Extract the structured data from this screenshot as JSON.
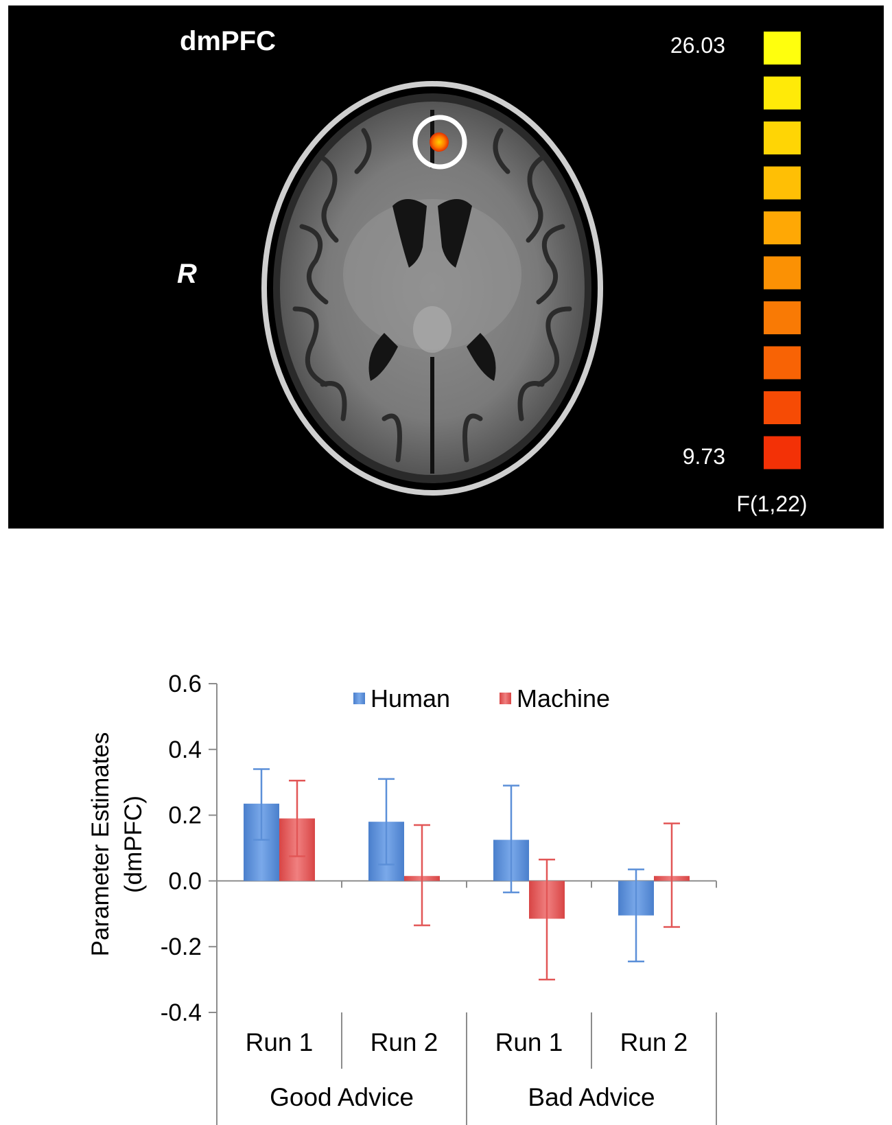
{
  "brain_panel": {
    "region_label": "dmPFC",
    "side_label": "R",
    "colorbar": {
      "max_label": "26.03",
      "min_label": "9.73",
      "stat_label": "F(1,22)",
      "colors": [
        "#ffff0d",
        "#ffea08",
        "#ffd505",
        "#ffbf05",
        "#ffa805",
        "#fb9104",
        "#f97a05",
        "#f86305",
        "#f64b05",
        "#f33106"
      ]
    },
    "activation_color": "#ff7a00",
    "marker_color": "#ffffff"
  },
  "chart_data": {
    "type": "bar",
    "ylabel_lines": [
      "Parameter Estimates",
      "(dmPFC)"
    ],
    "ylim": [
      -0.4,
      0.6
    ],
    "yticks": [
      0.6,
      0.4,
      0.2,
      0.0,
      -0.2,
      -0.4
    ],
    "ytick_labels": [
      "0.6",
      "0.4",
      "0.2",
      "0.0",
      "-0.2",
      "-0.4"
    ],
    "categories": [
      "Run 1",
      "Run 2",
      "Run 1",
      "Run 2"
    ],
    "groups": [
      {
        "label": "Good Advice",
        "span": 2
      },
      {
        "label": "Bad Advice",
        "span": 2
      }
    ],
    "legend_placement": "top",
    "grid": false,
    "series": [
      {
        "name": "Human",
        "color": "#5b8fd8",
        "values": [
          0.235,
          0.18,
          0.125,
          -0.105
        ],
        "error_low": [
          0.125,
          0.05,
          -0.035,
          -0.245
        ],
        "error_high": [
          0.34,
          0.31,
          0.29,
          0.035
        ]
      },
      {
        "name": "Machine",
        "color": "#e25656",
        "values": [
          0.19,
          0.015,
          -0.115,
          0.015
        ],
        "error_low": [
          0.075,
          -0.135,
          -0.3,
          -0.14
        ],
        "error_high": [
          0.305,
          0.17,
          0.065,
          0.175
        ]
      }
    ]
  }
}
